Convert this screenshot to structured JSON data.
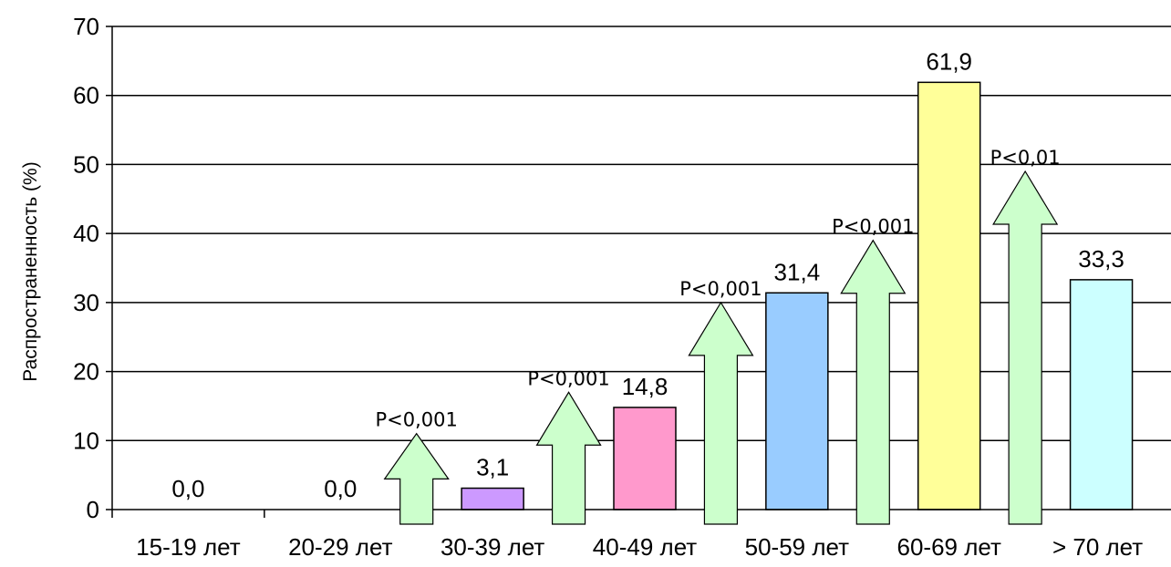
{
  "chart_data": {
    "type": "bar",
    "categories": [
      "15-19 лет",
      "20-29 лет",
      "30-39 лет",
      "40-49 лет",
      "50-59 лет",
      "60-69 лет",
      "> 70 лет"
    ],
    "values": [
      0.0,
      0.0,
      3.1,
      14.8,
      31.4,
      61.9,
      33.3
    ],
    "value_labels": [
      "0,0",
      "0,0",
      "3,1",
      "14,8",
      "31,4",
      "61,9",
      "33,3"
    ],
    "bar_colors": [
      "#ffffff",
      "#ffffff",
      "#cc99ff",
      "#ff99cc",
      "#99ccff",
      "#ffff99",
      "#ccffff"
    ],
    "ylabel": "Распространенность (%)",
    "xlabel": "",
    "title": "",
    "ylim": [
      0,
      70
    ],
    "yticks": [
      0,
      10,
      20,
      30,
      40,
      50,
      60,
      70
    ],
    "grid": true,
    "arrow_color": "#ccffcc",
    "annotations": [
      {
        "text": "P<0,001",
        "between": [
          "20-29 лет",
          "30-39 лет"
        ],
        "arrow_top": 11
      },
      {
        "text": "P<0,001",
        "between": [
          "30-39 лет",
          "40-49 лет"
        ],
        "arrow_top": 17
      },
      {
        "text": "P<0,001",
        "between": [
          "40-49 лет",
          "50-59 лет"
        ],
        "arrow_top": 30
      },
      {
        "text": "P<0,001",
        "between": [
          "50-59 лет",
          "60-69 лет"
        ],
        "arrow_top": 39
      },
      {
        "text": "P<0,01",
        "between": [
          "60-69 лет",
          "> 70 лет"
        ],
        "arrow_top": 49
      }
    ]
  }
}
